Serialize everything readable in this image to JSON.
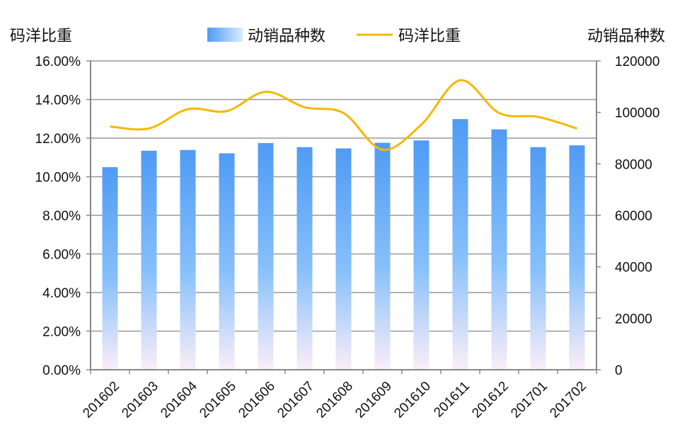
{
  "chart_data": {
    "type": "bar",
    "title": "",
    "categories": [
      "201602",
      "201603",
      "201604",
      "201605",
      "201606",
      "201607",
      "201608",
      "201609",
      "201610",
      "201611",
      "201612",
      "201701",
      "201702"
    ],
    "series": [
      {
        "name": "动销品种数",
        "type": "bar",
        "axis": "right",
        "values": [
          78700,
          85100,
          85400,
          84100,
          88100,
          86500,
          86000,
          88200,
          89100,
          97400,
          93400,
          86500,
          87200
        ]
      },
      {
        "name": "码洋比重",
        "type": "line",
        "axis": "left",
        "values": [
          12.6,
          12.5,
          13.5,
          13.4,
          14.4,
          13.6,
          13.3,
          11.4,
          12.7,
          15.0,
          13.3,
          13.1,
          12.5
        ]
      }
    ],
    "left_axis": {
      "label": "码洋比重",
      "range": [
        0,
        16
      ],
      "ticks": [
        "0.00%",
        "2.00%",
        "4.00%",
        "6.00%",
        "8.00%",
        "10.00%",
        "12.00%",
        "14.00%",
        "16.00%"
      ]
    },
    "right_axis": {
      "label": "动销品种数",
      "range": [
        0,
        120000
      ],
      "ticks": [
        "0",
        "20000",
        "40000",
        "60000",
        "80000",
        "100000",
        "120000"
      ]
    },
    "legend": [
      "动销品种数",
      "码洋比重"
    ],
    "legend_position": "top",
    "grid": true,
    "colors": {
      "bar_top": "#4f9bf5",
      "bar_bottom": "#fbeef8",
      "line": "#f5b800",
      "grid": "#999999",
      "axis": "#888888"
    }
  }
}
